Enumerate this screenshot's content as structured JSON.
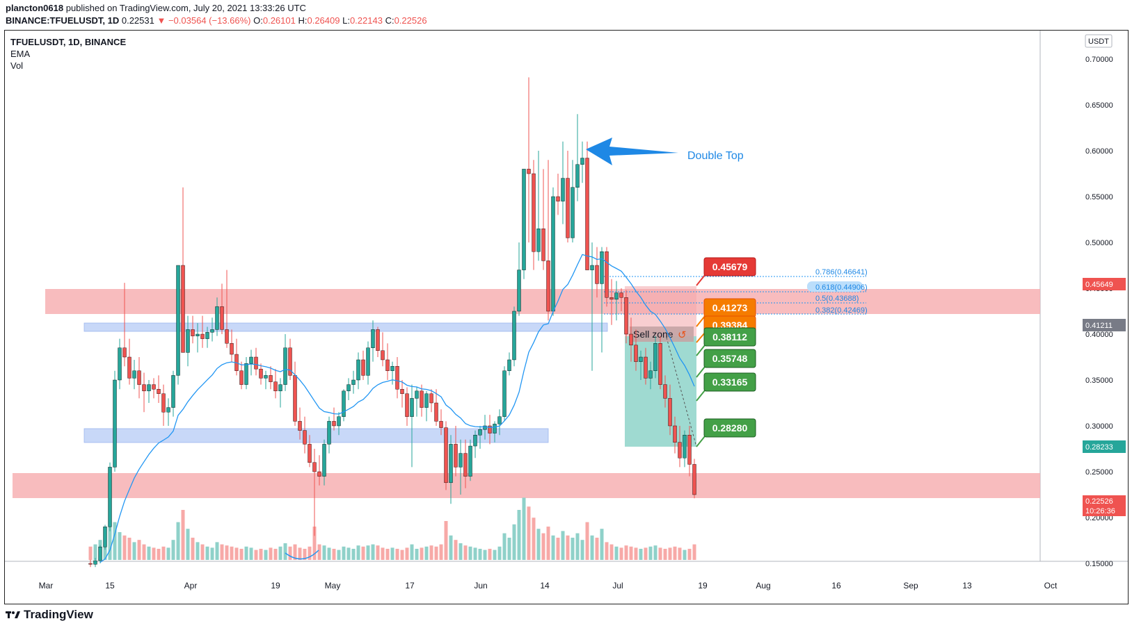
{
  "header": {
    "publisher": "plancton0618",
    "published_text": "published on TradingView.com, July 20, 2021 13:33:26 UTC",
    "symbol_line": "BINANCE:TFUELUSDT, 1D",
    "last": "0.22531",
    "change": "▼ −0.03564 (−13.66%)",
    "open_label": "O:",
    "open": "0.26101",
    "high_label": "H:",
    "high": "0.26409",
    "low_label": "L:",
    "low": "0.22143",
    "close_label": "C:",
    "close": "0.22526"
  },
  "legend": {
    "symbol": "TFUELUSDT, 1D, BINANCE",
    "ema": "EMA",
    "vol": "Vol"
  },
  "axis": {
    "currency": "USDT",
    "y_ticks": [
      "0.70000",
      "0.65000",
      "0.60000",
      "0.55000",
      "0.50000",
      "0.45000",
      "0.40000",
      "0.35000",
      "0.30000",
      "0.25000",
      "0.20000",
      "0.15000"
    ],
    "x_ticks": [
      "Mar",
      "15",
      "Apr",
      "19",
      "May",
      "17",
      "Jun",
      "14",
      "Jul",
      "19",
      "Aug",
      "16",
      "Sep",
      "13",
      "Oct"
    ]
  },
  "price_tags": {
    "resistance": "0.45649",
    "ema": "0.41211",
    "target": "0.28233",
    "last": "0.22526",
    "countdown": "10:26:36"
  },
  "fib": [
    "0.786(0.46641)",
    "0.618(0.44906)",
    "0.5(0.43688)",
    "0.382(0.42469)"
  ],
  "annotations": {
    "double_top": "Double Top",
    "sell_zone": "Sell zone"
  },
  "trade_labels": {
    "stop": "0.45679",
    "entry1": "0.41273",
    "entry2": "0.39384",
    "tp1": "0.38112",
    "tp2": "0.35748",
    "tp3": "0.33165",
    "tp4": "0.28280"
  },
  "colors": {
    "up": "#26a69a",
    "down": "#ef5350",
    "ema": "#2196f3",
    "resistance_zone": "#f7b0b3",
    "support_zone": "#c8d8f8",
    "stop_label": "#e53935",
    "entry_label": "#f57c00",
    "tp_label": "#43a047"
  },
  "brand": "TradingView"
}
